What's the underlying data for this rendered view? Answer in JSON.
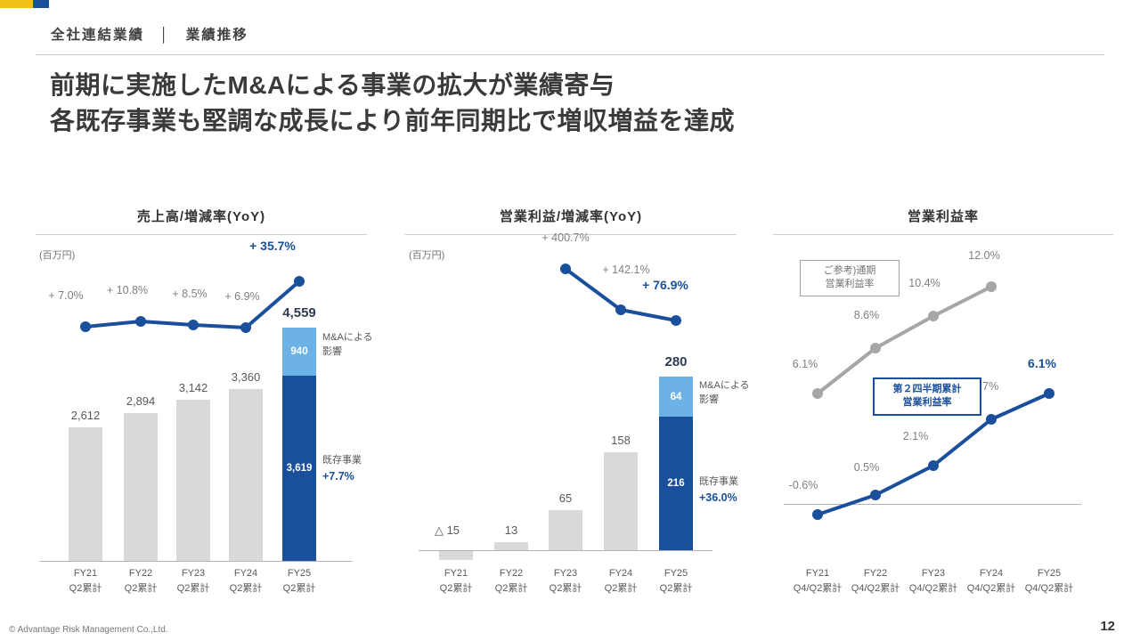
{
  "slide": {
    "header": "全社連結業績　│　業績推移",
    "title_line1": "前期に実施したM&Aによる事業の拡大が業績寄与",
    "title_line2": "各既存事業も堅調な成長により前年同期比で増収増益を達成",
    "footer_copyright": "© Advantage Risk Management Co.,Ltd.",
    "page_number": "12"
  },
  "colors": {
    "accent_yellow": "#F2C117",
    "brand_blue": "#1A4F9C",
    "light_blue": "#6CB2E6",
    "bar_gray": "#D9D9D9",
    "line_gray": "#A6A6A6",
    "label_gray": "#808080",
    "text_dark": "#3A3A3A",
    "total_navy": "#2E3B52"
  },
  "chart_data": [
    {
      "type": "bar+line",
      "title": "売上高/増減率(YoY)",
      "unit_label": "(百万円)",
      "categories": [
        "FY21",
        "FY22",
        "FY23",
        "FY24",
        "FY25"
      ],
      "category_sub": [
        "Q2累計",
        "Q2累計",
        "Q2累計",
        "Q2累計",
        "Q2累計"
      ],
      "ylim": [
        0,
        4800
      ],
      "bars": {
        "gray_values": [
          2612,
          2894,
          3142,
          3360
        ],
        "gray_labels": [
          "2,612",
          "2,894",
          "3,142",
          "3,360"
        ],
        "existing_value": 3619,
        "existing_label": "3,619",
        "ma_value": 940,
        "ma_label": "940",
        "total_value": 4559,
        "total_label": "4,559"
      },
      "line": {
        "name": "増減率(YoY)",
        "start_index": 0,
        "values": [
          7.0,
          10.8,
          8.5,
          6.9,
          35.7
        ],
        "labels": [
          "+ 7.0%",
          "+ 10.8%",
          "+ 8.5%",
          "+ 6.9%",
          "+ 35.7%"
        ]
      },
      "annotations": {
        "ma_line1": "M&Aによる",
        "ma_line2": "影響",
        "existing_label": "既存事業",
        "existing_growth": "+7.7%"
      }
    },
    {
      "type": "bar+line",
      "title": "営業利益/増減率(YoY)",
      "unit_label": "(百万円)",
      "categories": [
        "FY21",
        "FY22",
        "FY23",
        "FY24",
        "FY25"
      ],
      "category_sub": [
        "Q2累計",
        "Q2累計",
        "Q2累計",
        "Q2累計",
        "Q2累計"
      ],
      "ylim": [
        -30,
        300
      ],
      "bars": {
        "gray_values": [
          -15,
          13,
          65,
          158
        ],
        "gray_labels": [
          "△ 15",
          "13",
          "65",
          "158"
        ],
        "existing_value": 216,
        "existing_label": "216",
        "ma_value": 64,
        "ma_label": "64",
        "total_value": 280,
        "total_label": "280"
      },
      "line": {
        "name": "増減率(YoY)",
        "start_index": 2,
        "values": [
          400.7,
          142.1,
          76.9
        ],
        "labels": [
          "+ 400.7%",
          "+ 142.1%",
          "+ 76.9%"
        ]
      },
      "annotations": {
        "ma_line1": "M&Aによる",
        "ma_line2": "影響",
        "existing_label": "既存事業",
        "existing_growth": "+36.0%"
      }
    },
    {
      "type": "line",
      "title": "営業利益率",
      "categories": [
        "FY21",
        "FY22",
        "FY23",
        "FY24",
        "FY25"
      ],
      "category_sub": [
        "Q4/Q2累計",
        "Q4/Q2累計",
        "Q4/Q2累計",
        "Q4/Q2累計",
        "Q4/Q2累計"
      ],
      "ylim": [
        -2,
        14
      ],
      "series": [
        {
          "name": "ご参考)通期営業利益率",
          "color": "gray",
          "values": [
            6.1,
            8.6,
            10.4,
            12.0
          ],
          "labels": [
            "6.1%",
            "8.6%",
            "10.4%",
            "12.0%"
          ]
        },
        {
          "name": "第２四半期累計営業利益率",
          "color": "blue",
          "values": [
            -0.6,
            0.5,
            2.1,
            4.7,
            6.1
          ],
          "labels": [
            "-0.6%",
            "0.5%",
            "2.1%",
            "4.7%",
            "6.1%"
          ]
        }
      ],
      "legend_boxes": [
        {
          "line1": "ご参考)通期",
          "line2": "営業利益率",
          "style": "gray"
        },
        {
          "line1": "第２四半期累計",
          "line2": "営業利益率",
          "style": "blue"
        }
      ]
    }
  ]
}
